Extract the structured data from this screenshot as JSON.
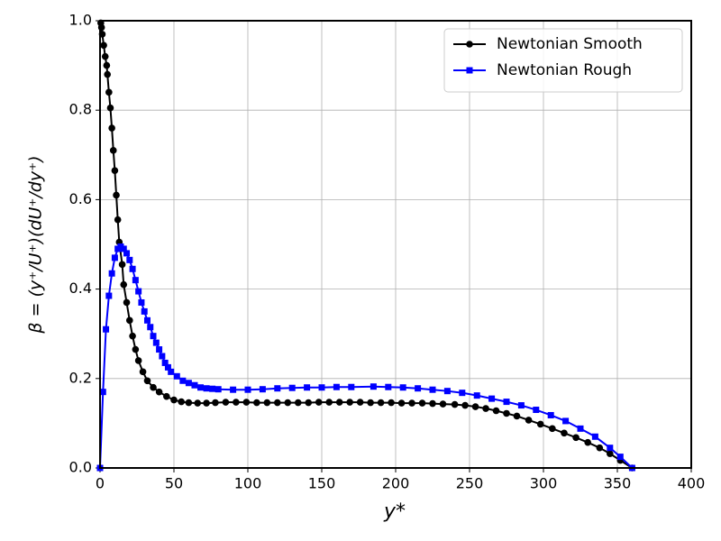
{
  "chart_data": {
    "type": "line",
    "xlabel": "y*",
    "ylabel": "β = (y⁺/U⁺)(dU⁺/dy⁺)",
    "xlim": [
      0,
      400
    ],
    "ylim": [
      0,
      1
    ],
    "xticks": [
      0,
      50,
      100,
      150,
      200,
      250,
      300,
      350,
      400
    ],
    "yticks": [
      {
        "value": 0,
        "label": "0.0"
      },
      {
        "value": 0.2,
        "label": "0.2"
      },
      {
        "value": 0.4,
        "label": "0.4"
      },
      {
        "value": 0.6,
        "label": "0.6"
      },
      {
        "value": 0.8,
        "label": "0.8"
      },
      {
        "value": 1,
        "label": "1.0"
      }
    ],
    "grid": true,
    "legend": "upper right",
    "series": [
      {
        "name": "Newtonian Smooth",
        "color": "#000000",
        "marker": "circle",
        "x": [
          0.5,
          1,
          1.5,
          2.5,
          3.5,
          4.5,
          5,
          6,
          7,
          8,
          9,
          10,
          11,
          12,
          13,
          15,
          16,
          18,
          20,
          22,
          24,
          26,
          29,
          32,
          36,
          40,
          45,
          50,
          55,
          60,
          66,
          72,
          78,
          85,
          92,
          99,
          106,
          113,
          120,
          127,
          134,
          141,
          148,
          155,
          162,
          169,
          176,
          183,
          190,
          197,
          204,
          211,
          218,
          225,
          232,
          240,
          247,
          254,
          261,
          268,
          275,
          282,
          290,
          298,
          306,
          314,
          322,
          330,
          338,
          345,
          352,
          360
        ],
        "values": [
          0.995,
          0.985,
          0.97,
          0.945,
          0.92,
          0.9,
          0.88,
          0.84,
          0.805,
          0.76,
          0.71,
          0.665,
          0.61,
          0.555,
          0.505,
          0.455,
          0.41,
          0.37,
          0.33,
          0.295,
          0.265,
          0.24,
          0.215,
          0.195,
          0.18,
          0.17,
          0.16,
          0.152,
          0.148,
          0.146,
          0.145,
          0.145,
          0.146,
          0.147,
          0.147,
          0.147,
          0.146,
          0.146,
          0.146,
          0.146,
          0.146,
          0.146,
          0.147,
          0.147,
          0.147,
          0.147,
          0.147,
          0.146,
          0.146,
          0.146,
          0.145,
          0.145,
          0.145,
          0.144,
          0.143,
          0.142,
          0.14,
          0.137,
          0.133,
          0.128,
          0.122,
          0.116,
          0.107,
          0.098,
          0.088,
          0.078,
          0.068,
          0.057,
          0.045,
          0.032,
          0.017,
          0.0
        ]
      },
      {
        "name": "Newtonian Rough",
        "color": "#0000ff",
        "marker": "square",
        "x": [
          0,
          2,
          4,
          6,
          8,
          10,
          12,
          14,
          16,
          18,
          20,
          22,
          24,
          26,
          28,
          30,
          32,
          34,
          36,
          38,
          40,
          42,
          44,
          46,
          48,
          52,
          56,
          60,
          64,
          68,
          72,
          76,
          80,
          90,
          100,
          110,
          120,
          130,
          140,
          150,
          160,
          170,
          185,
          195,
          205,
          215,
          225,
          235,
          245,
          255,
          265,
          275,
          285,
          295,
          305,
          315,
          325,
          335,
          345,
          352,
          360
        ],
        "values": [
          0,
          0.17,
          0.31,
          0.385,
          0.435,
          0.47,
          0.49,
          0.495,
          0.49,
          0.48,
          0.465,
          0.445,
          0.42,
          0.395,
          0.37,
          0.35,
          0.33,
          0.315,
          0.295,
          0.28,
          0.265,
          0.25,
          0.235,
          0.225,
          0.215,
          0.205,
          0.195,
          0.19,
          0.185,
          0.18,
          0.178,
          0.177,
          0.176,
          0.175,
          0.175,
          0.176,
          0.178,
          0.179,
          0.18,
          0.18,
          0.181,
          0.181,
          0.182,
          0.181,
          0.18,
          0.178,
          0.175,
          0.172,
          0.168,
          0.162,
          0.155,
          0.148,
          0.14,
          0.13,
          0.118,
          0.105,
          0.088,
          0.07,
          0.045,
          0.025,
          0.0
        ]
      }
    ]
  }
}
